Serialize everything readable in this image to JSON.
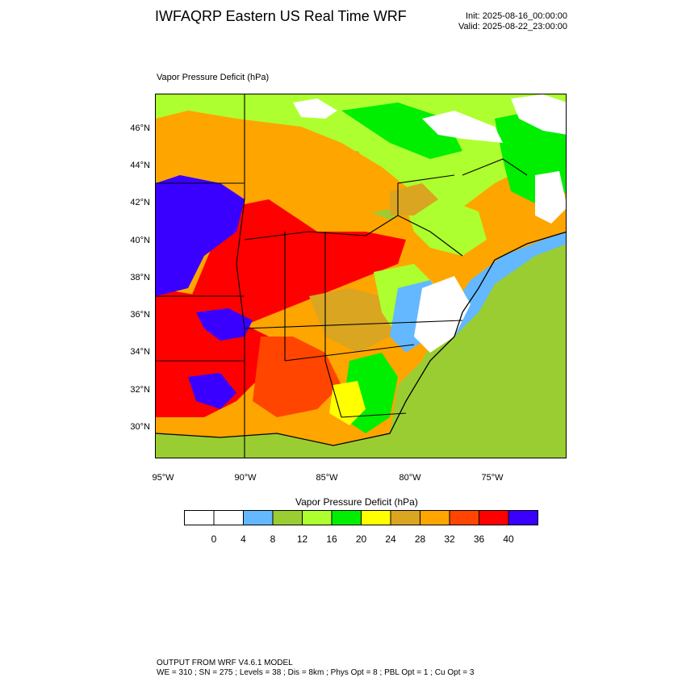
{
  "title": "IWFAQRP Eastern US Real Time WRF",
  "init": "Init: 2025-08-16_00:00:00",
  "valid": "Valid: 2025-08-22_23:00:00",
  "field_label": "Vapor Pressure Deficit   (hPa)",
  "lat_labels": [
    "46°N",
    "44°N",
    "42°N",
    "40°N",
    "38°N",
    "36°N",
    "34°N",
    "32°N",
    "30°N"
  ],
  "lon_labels": [
    "95°W",
    "90°W",
    "85°W",
    "80°W",
    "75°W"
  ],
  "colorbar": {
    "title": "Vapor Pressure Deficit  (hPa)",
    "colors": [
      "#ffffff",
      "#ffffff",
      "#63b8ff",
      "#9acd32",
      "#adff2f",
      "#00ee00",
      "#ffff00",
      "#daa520",
      "#ffa500",
      "#ff4500",
      "#ff0000",
      "#3a00ff"
    ],
    "tick_labels": [
      "0",
      "4",
      "8",
      "12",
      "16",
      "20",
      "24",
      "28",
      "32",
      "36",
      "40"
    ]
  },
  "footer": {
    "line1": "OUTPUT FROM WRF V4.6.1 MODEL",
    "line2": "WE = 310 ; SN = 275 ; Levels = 38 ; Dis = 8km ; Phys Opt = 8 ; PBL Opt = 1 ; Cu Opt = 3"
  }
}
